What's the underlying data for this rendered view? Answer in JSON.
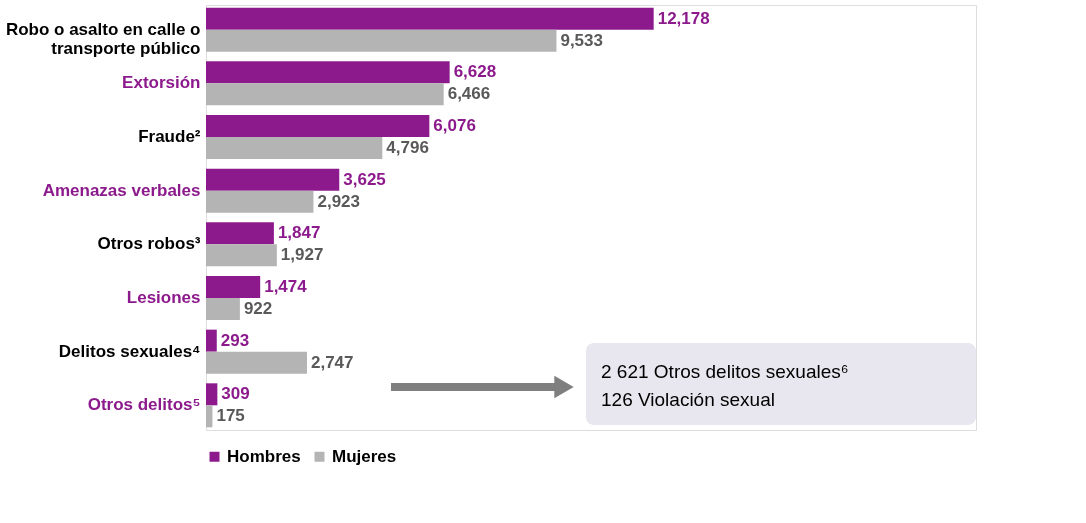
{
  "chart_data": {
    "type": "bar",
    "orientation": "horizontal",
    "categories": [
      "Robo o asalto en calle o transporte público",
      "Extorsión",
      "Fraude²",
      "Amenazas verbales",
      "Otros robos³",
      "Lesiones",
      "Delitos sexuales⁴",
      "Otros delitos⁵"
    ],
    "series": [
      {
        "name": "Hombres",
        "color": "#8c1a8c",
        "values": [
          12178,
          6628,
          6076,
          3625,
          1847,
          1474,
          293,
          309
        ],
        "value_labels": [
          "12,178",
          "6,628",
          "6,076",
          "3,625",
          "1,847",
          "1,474",
          "293",
          "309"
        ]
      },
      {
        "name": "Mujeres",
        "color": "#b4b4b4",
        "values": [
          9533,
          6466,
          4796,
          2923,
          1927,
          922,
          2747,
          175
        ],
        "value_labels": [
          "9,533",
          "6,466",
          "4,796",
          "2,923",
          "1,927",
          "922",
          "2,747",
          "175"
        ]
      }
    ],
    "annotations": [
      "2 621 Otros delitos sexuales⁶",
      "126 Violación sexual"
    ],
    "legend": "bottom",
    "grid": false
  }
}
